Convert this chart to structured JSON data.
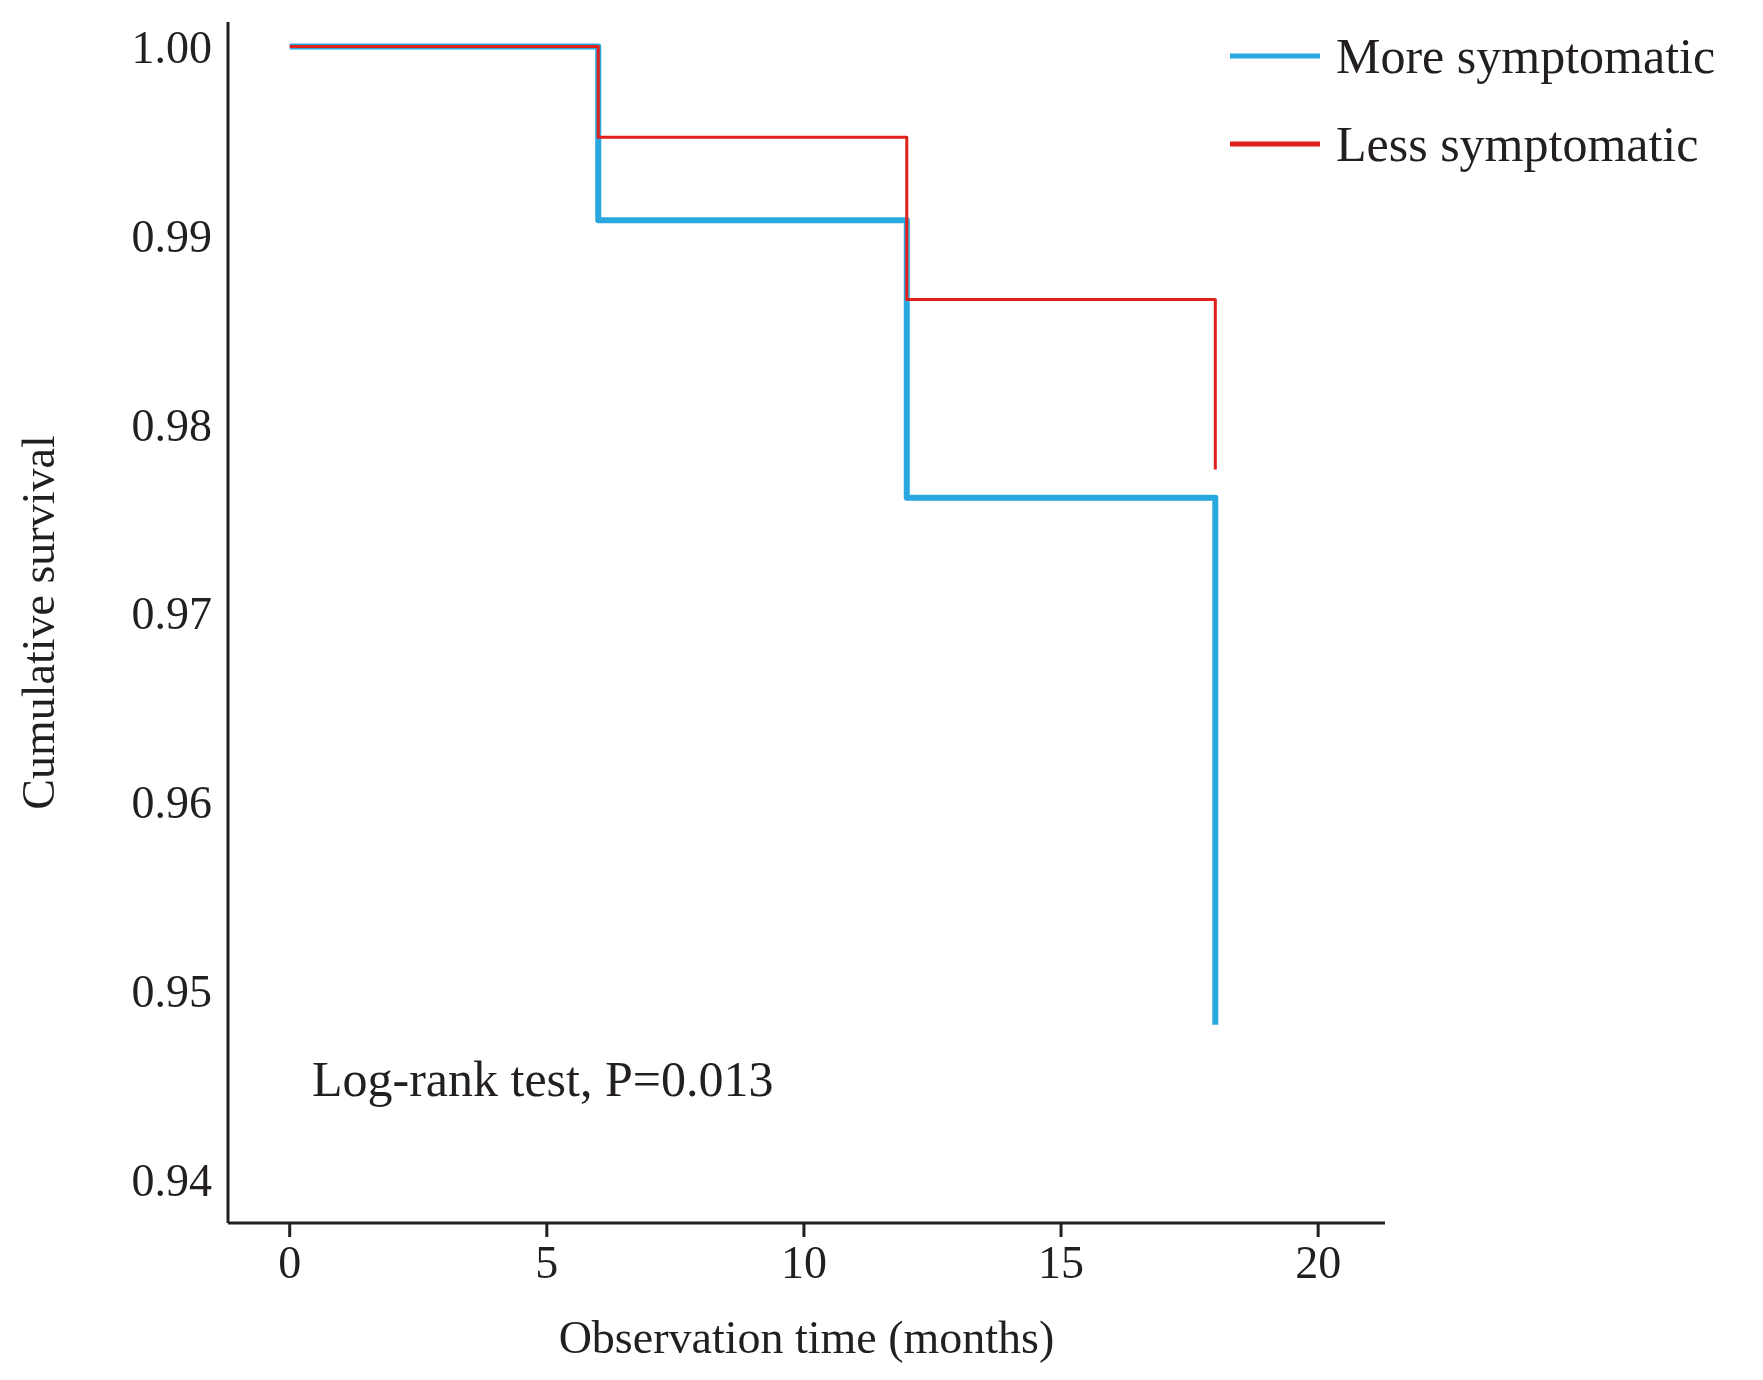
{
  "chart_data": {
    "type": "step",
    "xlabel": "Observation time (months)",
    "ylabel": "Cumulative survival",
    "xlim": [
      -1.2,
      21.3
    ],
    "xticks": [
      0,
      5,
      10,
      15,
      20
    ],
    "ylim": [
      0.9377,
      1.0013
    ],
    "yticks": [
      {
        "value": 0.94,
        "label": "0.94"
      },
      {
        "value": 0.95,
        "label": "0.95"
      },
      {
        "value": 0.96,
        "label": "0.96"
      },
      {
        "value": 0.97,
        "label": "0.97"
      },
      {
        "value": 0.98,
        "label": "0.98"
      },
      {
        "value": 0.99,
        "label": "0.99"
      },
      {
        "value": 1.0,
        "label": "1.00"
      }
    ],
    "series": [
      {
        "name": "More symptomatic",
        "color": "#29a8df",
        "x": [
          0,
          6,
          12,
          18,
          18
        ],
        "values": [
          1.0,
          0.9908,
          0.9761,
          0.9761,
          0.9482
        ]
      },
      {
        "name": "Less symptomatic",
        "color": "#e0201b",
        "x": [
          0,
          6,
          12,
          18,
          18
        ],
        "values": [
          1.0,
          0.9952,
          0.9866,
          0.9866,
          0.9776
        ]
      }
    ],
    "annotations": [
      "Log-rank test, P=0.013"
    ],
    "legend": "top right"
  }
}
